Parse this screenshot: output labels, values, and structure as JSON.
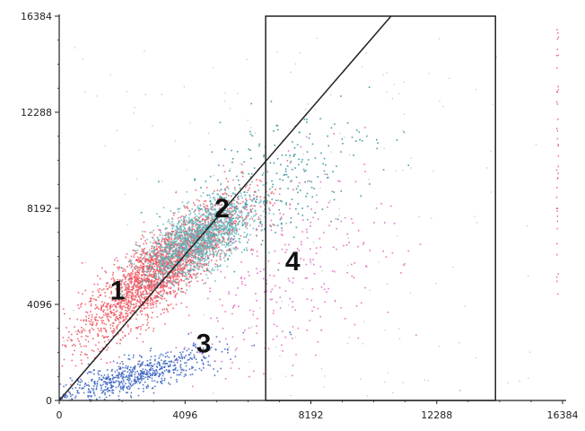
{
  "chart_data": {
    "type": "scatter",
    "title": "",
    "xlabel": "",
    "ylabel": "",
    "xlim": [
      0,
      16384
    ],
    "ylim": [
      0,
      16384
    ],
    "x_ticks": [
      {
        "value": 0,
        "label": "0"
      },
      {
        "value": 4096,
        "label": "4096"
      },
      {
        "value": 8192,
        "label": "8192"
      },
      {
        "value": 12288,
        "label": "12288"
      },
      {
        "value": 16384,
        "label": "16384"
      }
    ],
    "y_ticks": [
      {
        "value": 0,
        "label": "0"
      },
      {
        "value": 4096,
        "label": "4096"
      },
      {
        "value": 8192,
        "label": "8192"
      },
      {
        "value": 12288,
        "label": "12288"
      },
      {
        "value": 16384,
        "label": "16384"
      }
    ],
    "grid": false,
    "gates": {
      "diagonal_line": {
        "from": [
          0,
          0
        ],
        "to": [
          10800,
          16384
        ]
      },
      "rectangle": {
        "x": [
          6720,
          14200
        ],
        "y": [
          0,
          16384
        ]
      }
    },
    "populations": [
      {
        "label": "1",
        "color": "#ee5560",
        "center": [
          3300,
          5600
        ],
        "spread": [
          1300,
          1500
        ],
        "corr": 0.85,
        "count": 2600,
        "label_at": [
          1900,
          4300
        ]
      },
      {
        "label": "2",
        "color": "#5fb5b8",
        "center": [
          4500,
          6900
        ],
        "spread": [
          900,
          900
        ],
        "corr": 0.65,
        "count": 1600,
        "label_at": [
          5300,
          7800
        ]
      },
      {
        "label": "3",
        "color": "#3560c0",
        "center": [
          2500,
          1100
        ],
        "spread": [
          1400,
          600
        ],
        "corr": 0.8,
        "count": 700,
        "label_at": [
          4700,
          2050
        ]
      },
      {
        "label": "4",
        "color": "#e060c0",
        "center": [
          7300,
          5600
        ],
        "spread": [
          1800,
          2200
        ],
        "corr": 0.3,
        "count": 320,
        "label_at": [
          7600,
          5550
        ]
      }
    ],
    "scatter_tail": {
      "color": "#2a8a99",
      "center": [
        7000,
        9500
      ],
      "spread": [
        1600,
        1600
      ],
      "corr": 0.5,
      "count": 250
    },
    "sparse_noise": {
      "color": "#778088",
      "count": 180
    },
    "edge_column": {
      "x": 16200,
      "color": "#e05060",
      "count": 40
    }
  },
  "colors": {
    "axis": "#222222",
    "gate": "#222222",
    "background": "#ffffff"
  }
}
